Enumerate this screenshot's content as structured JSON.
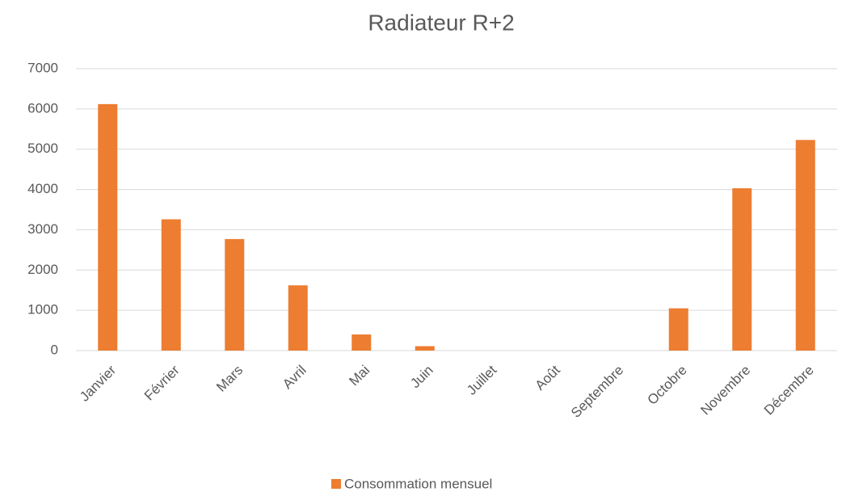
{
  "chart_data": {
    "type": "bar",
    "title": "Radiateur R+2",
    "categories": [
      "Janvier",
      "Février",
      "Mars",
      "Avril",
      "Mai",
      "Juin",
      "Juillet",
      "Août",
      "Septembre",
      "Octobre",
      "Novembre",
      "Décembre"
    ],
    "series": [
      {
        "name": "Consommation mensuel",
        "color": "#ed7d31",
        "values": [
          6120,
          3260,
          2770,
          1620,
          400,
          110,
          0,
          0,
          0,
          1050,
          4030,
          5230
        ]
      }
    ],
    "ylim": [
      0,
      7000
    ],
    "yticks": [
      0,
      1000,
      2000,
      3000,
      4000,
      5000,
      6000,
      7000
    ],
    "grid": true,
    "legend": "bottom"
  }
}
